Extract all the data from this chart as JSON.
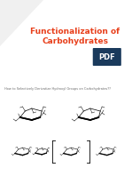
{
  "title_line1": "Functionalization of",
  "title_line2": "Carbohydrates",
  "title_color": "#e8401c",
  "title_fontsize": 6.5,
  "bg_color": "#ffffff",
  "subtitle_text": "How to Selectively Derivatize Hydroxyl Groups on Carbohydrates??",
  "subtitle_fontsize": 2.5,
  "subtitle_color": "#666666",
  "pdf_badge_color": "#1a3a5c",
  "pdf_text_color": "#ffffff"
}
